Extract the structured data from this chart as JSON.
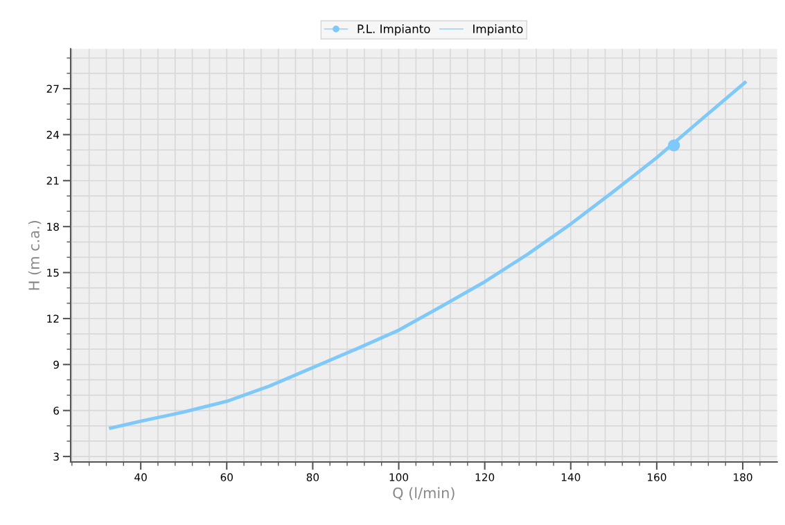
{
  "chart_data": {
    "type": "line",
    "xlabel": "Q (l/min)",
    "ylabel": "H (m c.a.)",
    "xlim": [
      23.7,
      188
    ],
    "ylim": [
      2.64,
      29.6
    ],
    "xticks": [
      {
        "value": 24,
        "label": null
      },
      {
        "value": 28,
        "label": null
      },
      {
        "value": 32,
        "label": null
      },
      {
        "value": 36,
        "label": null
      },
      40,
      {
        "value": 44,
        "label": null
      },
      {
        "value": 48,
        "label": null
      },
      {
        "value": 52,
        "label": null
      },
      {
        "value": 56,
        "label": null
      },
      60,
      {
        "value": 64,
        "label": null
      },
      {
        "value": 68,
        "label": null
      },
      {
        "value": 72,
        "label": null
      },
      {
        "value": 76,
        "label": null
      },
      80,
      {
        "value": 84,
        "label": null
      },
      {
        "value": 88,
        "label": null
      },
      {
        "value": 92,
        "label": null
      },
      {
        "value": 96,
        "label": null
      },
      100,
      {
        "value": 104,
        "label": null
      },
      {
        "value": 108,
        "label": null
      },
      {
        "value": 112,
        "label": null
      },
      {
        "value": 116,
        "label": null
      },
      120,
      {
        "value": 124,
        "label": null
      },
      {
        "value": 128,
        "label": null
      },
      {
        "value": 132,
        "label": null
      },
      {
        "value": 136,
        "label": null
      },
      140,
      {
        "value": 144,
        "label": null
      },
      {
        "value": 148,
        "label": null
      },
      {
        "value": 152,
        "label": null
      },
      {
        "value": 156,
        "label": null
      },
      160,
      {
        "value": 164,
        "label": null
      },
      {
        "value": 168,
        "label": null
      },
      {
        "value": 172,
        "label": null
      },
      {
        "value": 176,
        "label": null
      },
      180,
      {
        "value": 184,
        "label": null
      }
    ],
    "yticks": [
      3,
      {
        "value": 4,
        "label": null
      },
      {
        "value": 5,
        "label": null
      },
      6,
      {
        "value": 7,
        "label": null
      },
      {
        "value": 8,
        "label": null
      },
      9,
      {
        "value": 10,
        "label": null
      },
      {
        "value": 11,
        "label": null
      },
      12,
      {
        "value": 13,
        "label": null
      },
      {
        "value": 14,
        "label": null
      },
      15,
      {
        "value": 16,
        "label": null
      },
      {
        "value": 17,
        "label": null
      },
      18,
      {
        "value": 19,
        "label": null
      },
      {
        "value": 20,
        "label": null
      },
      21,
      {
        "value": 22,
        "label": null
      },
      {
        "value": 23,
        "label": null
      },
      24,
      {
        "value": 25,
        "label": null
      },
      {
        "value": 26,
        "label": null
      },
      27,
      {
        "value": 28,
        "label": null
      },
      {
        "value": 29,
        "label": null
      }
    ],
    "grid": true,
    "legend": "top",
    "series": [
      {
        "name": "P.L. Impianto",
        "type": "scatter",
        "color": "#7ec8fa",
        "marker": "circle",
        "x": [
          164
        ],
        "values": [
          23.3
        ]
      },
      {
        "name": "Impianto",
        "color": "#7ec8fa",
        "marker": "none",
        "line_style": "solid",
        "x": [
          33,
          40,
          50,
          60,
          70,
          80,
          90,
          100,
          110,
          120,
          130,
          140,
          150,
          160,
          170,
          180.5
        ],
        "values": [
          4.85,
          5.3,
          5.9,
          6.6,
          7.6,
          8.8,
          10.0,
          11.24,
          12.8,
          14.4,
          16.2,
          18.17,
          20.3,
          22.5,
          24.9,
          27.4
        ]
      }
    ]
  }
}
